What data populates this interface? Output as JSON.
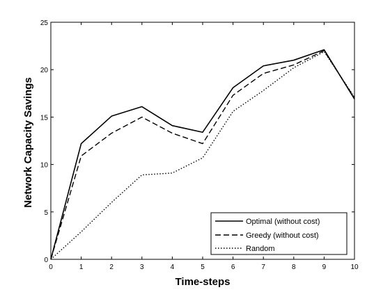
{
  "chart_data": {
    "type": "line",
    "x": [
      0,
      1,
      2,
      3,
      4,
      5,
      6,
      7,
      8,
      9,
      10
    ],
    "xlabel": "Time-steps",
    "ylabel": "Network Capacity Savings",
    "xlim": [
      0,
      10
    ],
    "ylim": [
      0,
      25
    ],
    "xticks": [
      "0",
      "1",
      "2",
      "3",
      "4",
      "5",
      "6",
      "7",
      "8",
      "9",
      "10"
    ],
    "yticks": [
      "0",
      "5",
      "10",
      "15",
      "20",
      "25"
    ],
    "grid": false,
    "legend_position": "bottom-right",
    "series": [
      {
        "name": "Optimal (without cost)",
        "style": "solid",
        "color": "#000000",
        "values": [
          0,
          12.2,
          15.1,
          16.1,
          14.1,
          13.4,
          18.1,
          20.4,
          21.0,
          22.1,
          16.9
        ]
      },
      {
        "name": "Greedy (without cost)",
        "style": "dashed",
        "color": "#000000",
        "values": [
          0,
          10.9,
          13.3,
          15.0,
          13.3,
          12.2,
          17.3,
          19.6,
          20.5,
          22.0,
          17.0
        ]
      },
      {
        "name": "Random",
        "style": "dotted",
        "color": "#000000",
        "values": [
          0,
          2.9,
          6.0,
          8.9,
          9.1,
          10.7,
          15.6,
          17.8,
          20.2,
          21.9,
          17.1
        ]
      }
    ]
  }
}
